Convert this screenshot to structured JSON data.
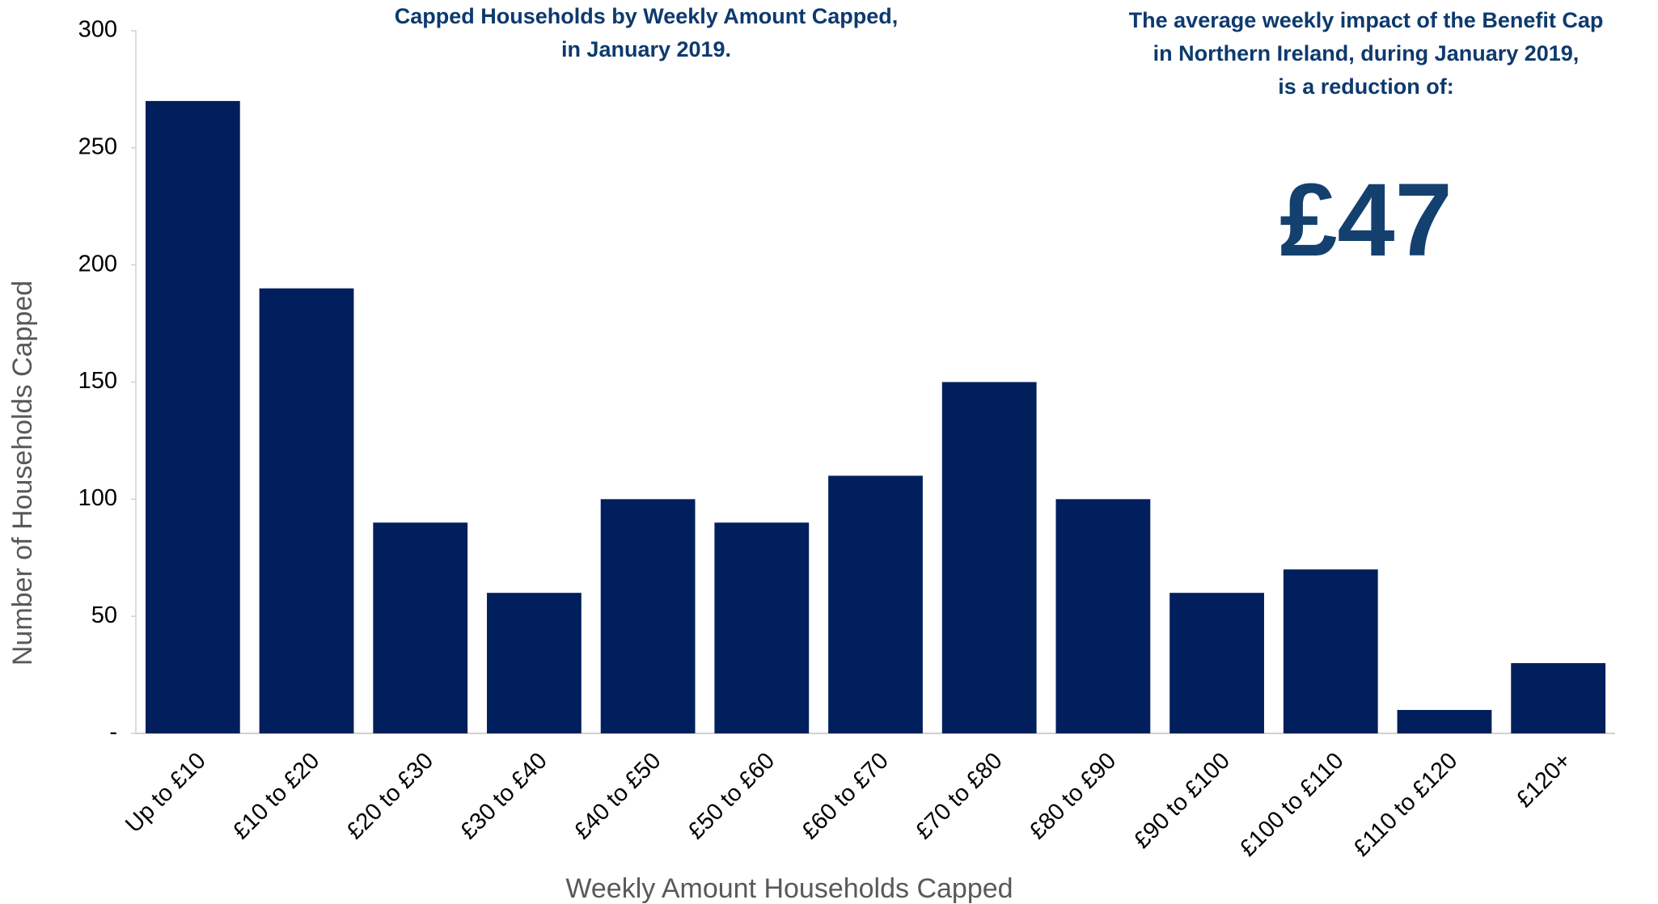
{
  "chart_data": {
    "type": "bar",
    "title": [
      "Capped Households by Weekly Amount Capped,",
      "in January 2019."
    ],
    "annotation": {
      "lines": [
        "The average weekly impact of the Benefit Cap",
        "in Northern Ireland, during January 2019,",
        "is a reduction of:"
      ],
      "value": "£47"
    },
    "x_label": "Weekly Amount Households Capped",
    "y_label": "Number of Households Capped",
    "categories": [
      "Up to £10",
      "£10 to £20",
      "£20 to £30",
      "£30 to £40",
      "£40 to £50",
      "£50 to £60",
      "£60 to £70",
      "£70 to £80",
      "£80 to £90",
      "£90 to £100",
      "£100 to £110",
      "£110 to £120",
      "£120+"
    ],
    "values": [
      270,
      190,
      90,
      60,
      100,
      90,
      110,
      150,
      100,
      60,
      70,
      10,
      30
    ],
    "color": "#001f5c",
    "ylim": [
      0,
      300
    ],
    "yticks": [
      {
        "value": 0,
        "label": "-"
      },
      50,
      100,
      150,
      200,
      250,
      300
    ],
    "grid": false
  }
}
